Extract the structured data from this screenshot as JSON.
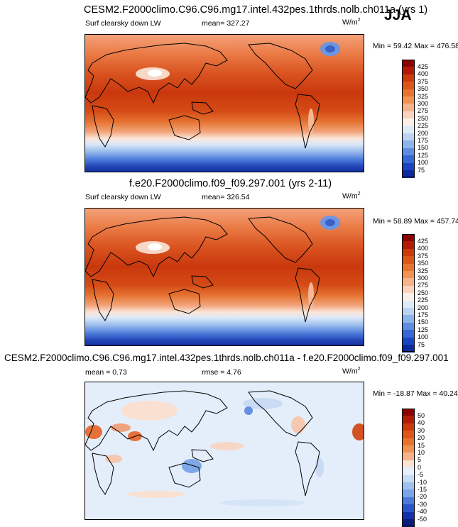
{
  "season": "JJA",
  "panels": [
    {
      "title": "CESM2.F2000climo.C96.C96.mg17.intel.432pes.1thrds.nolb.ch011a (yrs 1)",
      "left_label": "Surf clearsky down LW",
      "center_label": "mean= 327.27",
      "units": "W/m",
      "units_sup": "2",
      "minmax": "Min =  59.42 Max = 476.58",
      "colorbar": {
        "labels": [
          "425",
          "400",
          "375",
          "350",
          "325",
          "300",
          "275",
          "250",
          "225",
          "200",
          "175",
          "150",
          "125",
          "100",
          "75"
        ],
        "colors": [
          "#8b0000",
          "#b31a05",
          "#cc3a0c",
          "#dc5618",
          "#e8732e",
          "#f19152",
          "#f6b28a",
          "#f9d3bd",
          "#fbf0e9",
          "#dfeaf8",
          "#bcd3f2",
          "#8db4ea",
          "#5d8ce0",
          "#3568d4",
          "#1a45c2",
          "#0a2a9e"
        ]
      },
      "map_type": "absolute"
    },
    {
      "title": "f.e20.F2000climo.f09_f09.297.001 (yrs 2-11)",
      "left_label": "Surf clearsky down LW",
      "center_label": "mean= 326.54",
      "units": "W/m",
      "units_sup": "2",
      "minmax": "Min =  58.89 Max = 457.74",
      "colorbar": {
        "labels": [
          "425",
          "400",
          "375",
          "350",
          "325",
          "300",
          "275",
          "250",
          "225",
          "200",
          "175",
          "150",
          "125",
          "100",
          "75"
        ],
        "colors": [
          "#8b0000",
          "#b31a05",
          "#cc3a0c",
          "#dc5618",
          "#e8732e",
          "#f19152",
          "#f6b28a",
          "#f9d3bd",
          "#fbf0e9",
          "#dfeaf8",
          "#bcd3f2",
          "#8db4ea",
          "#5d8ce0",
          "#3568d4",
          "#1a45c2",
          "#0a2a9e"
        ]
      },
      "map_type": "absolute"
    },
    {
      "title": "CESM2.F2000climo.C96.C96.mg17.intel.432pes.1thrds.nolb.ch011a - f.e20.F2000climo.f09_f09.297.001",
      "left_label": "mean =   0.73",
      "center_label": "rmse =   4.76",
      "units": "W/m",
      "units_sup": "2",
      "minmax": "Min = -18.87 Max =  40.24",
      "colorbar": {
        "labels": [
          "50",
          "40",
          "30",
          "20",
          "15",
          "10",
          "5",
          "0",
          "-5",
          "-10",
          "-15",
          "-20",
          "-30",
          "-40",
          "-50"
        ],
        "colors": [
          "#8b0000",
          "#b31a05",
          "#cc3a0c",
          "#dc5618",
          "#e8732e",
          "#f19152",
          "#f6b28a",
          "#fbe3d4",
          "#e6effb",
          "#c6dbf4",
          "#9fc1ee",
          "#7aa5e6",
          "#4d7ad8",
          "#2a55c8",
          "#1233a8",
          "#081c7c"
        ]
      },
      "map_type": "difference"
    }
  ]
}
